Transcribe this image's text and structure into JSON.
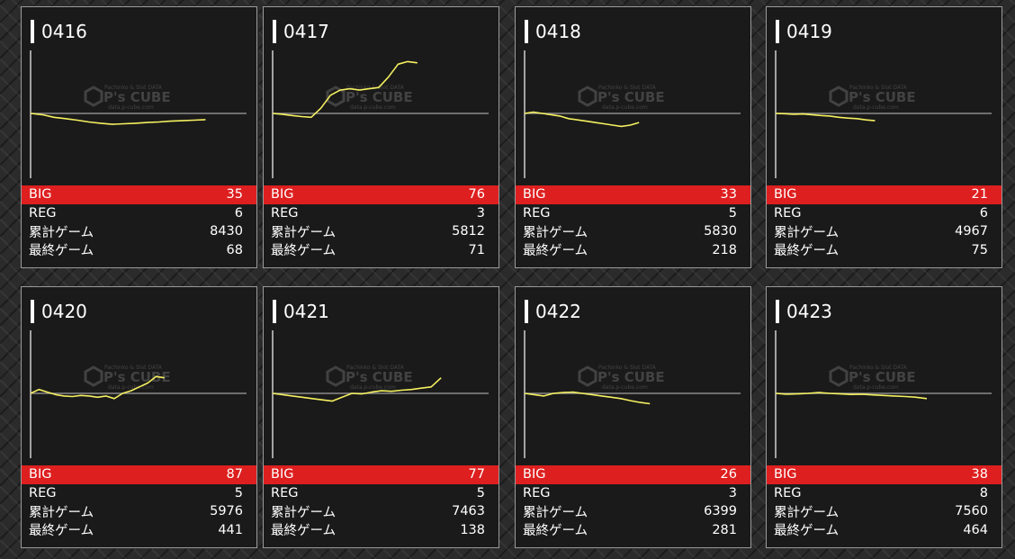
{
  "watermark": {
    "top": "Pachinko & Slot DATA",
    "brand": "P's CUBE",
    "bottom": "data.p-cube.com"
  },
  "labels": {
    "big": "BIG",
    "reg": "REG",
    "total_games": "累計ゲーム",
    "last_games": "最終ゲーム"
  },
  "colors": {
    "big_row": "#de1f1f",
    "graph_line": "#f5f060",
    "baseline": "#8a8a8a"
  },
  "machines": [
    {
      "date": "0416",
      "big": "35",
      "reg": "6",
      "total_games": "8430",
      "last_games": "68",
      "chart_data": {
        "type": "line",
        "end_fraction": 0.81,
        "values": [
          0,
          -50,
          -150,
          -200,
          -260,
          -330,
          -380,
          -420,
          -400,
          -380,
          -350,
          -330,
          -300,
          -280,
          -260,
          -240
        ]
      }
    },
    {
      "date": "0417",
      "big": "76",
      "reg": "3",
      "total_games": "5812",
      "last_games": "71",
      "chart_data": {
        "type": "line",
        "end_fraction": 0.67,
        "values": [
          0,
          -30,
          -80,
          -120,
          -150,
          200,
          700,
          900,
          950,
          900,
          950,
          1000,
          1400,
          1900,
          2000,
          1950
        ]
      }
    },
    {
      "date": "0418",
      "big": "33",
      "reg": "5",
      "total_games": "5830",
      "last_games": "218",
      "chart_data": {
        "type": "line",
        "end_fraction": 0.53,
        "values": [
          0,
          50,
          0,
          -50,
          -100,
          -200,
          -250,
          -300,
          -350,
          -400,
          -450,
          -500,
          -450,
          -350
        ]
      }
    },
    {
      "date": "0419",
      "big": "21",
      "reg": "6",
      "total_games": "4967",
      "last_games": "75",
      "chart_data": {
        "type": "line",
        "end_fraction": 0.46,
        "values": [
          0,
          -10,
          -30,
          -20,
          -50,
          -80,
          -100,
          -150,
          -180,
          -200,
          -250,
          -280
        ]
      }
    },
    {
      "date": "0420",
      "big": "87",
      "reg": "5",
      "total_games": "5976",
      "last_games": "441",
      "chart_data": {
        "type": "line",
        "end_fraction": 0.62,
        "values": [
          0,
          150,
          50,
          -50,
          -100,
          -120,
          -80,
          -100,
          -150,
          -100,
          -200,
          0,
          100,
          250,
          400,
          650,
          600
        ]
      }
    },
    {
      "date": "0421",
      "big": "77",
      "reg": "5",
      "total_games": "7463",
      "last_games": "138",
      "chart_data": {
        "type": "line",
        "end_fraction": 0.78,
        "values": [
          0,
          -50,
          -100,
          -150,
          -200,
          -250,
          -300,
          -150,
          0,
          -20,
          50,
          100,
          80,
          120,
          150,
          200,
          250,
          600
        ]
      }
    },
    {
      "date": "0422",
      "big": "26",
      "reg": "3",
      "total_games": "6399",
      "last_games": "281",
      "chart_data": {
        "type": "line",
        "end_fraction": 0.58,
        "values": [
          0,
          -50,
          -100,
          0,
          30,
          50,
          0,
          -50,
          -100,
          -150,
          -200,
          -280,
          -350,
          -400
        ]
      }
    },
    {
      "date": "0423",
      "big": "38",
      "reg": "8",
      "total_games": "7560",
      "last_games": "464",
      "chart_data": {
        "type": "line",
        "end_fraction": 0.7,
        "values": [
          0,
          -30,
          -20,
          0,
          30,
          0,
          -20,
          -40,
          -30,
          -60,
          -80,
          -100,
          -120,
          -150,
          -200
        ]
      }
    }
  ]
}
